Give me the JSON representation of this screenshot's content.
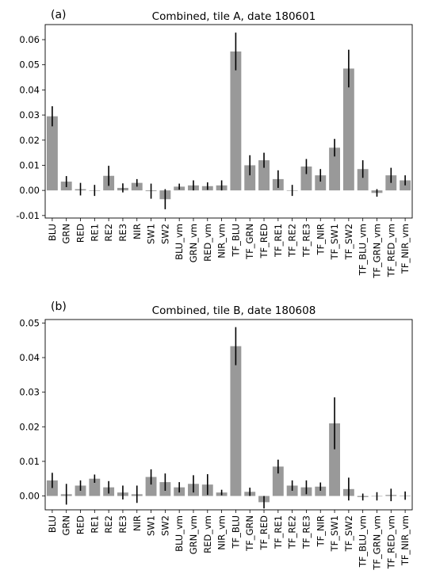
{
  "chart_data": [
    {
      "type": "bar",
      "panel_label": "(a)",
      "title": "Combined, tile A, date 180601",
      "xlabel": "",
      "ylabel": "",
      "ylim": [
        -0.011,
        0.066
      ],
      "yticks": [
        -0.01,
        0.0,
        0.01,
        0.02,
        0.03,
        0.04,
        0.05,
        0.06
      ],
      "ytick_labels": [
        "-0.01",
        "0.00",
        "0.01",
        "0.02",
        "0.03",
        "0.04",
        "0.05",
        "0.06"
      ],
      "grid": false,
      "bar_color": "#999999",
      "error_color": "#000000",
      "categories": [
        "BLU",
        "GRN",
        "RED",
        "RE1",
        "RE2",
        "RE3",
        "NIR",
        "SW1",
        "SW2",
        "BLU_vm",
        "GRN_vm",
        "RED_vm",
        "NIR_vm",
        "TF_BLU",
        "TF_GRN",
        "TF_RED",
        "TF_RE1",
        "TF_RE2",
        "TF_RE3",
        "TF_NIR",
        "TF_SW1",
        "TF_SW2",
        "TF_BLU_vm",
        "TF_GRN_vm",
        "TF_RED_vm",
        "TF_NIR_vm"
      ],
      "values": [
        0.0295,
        0.0035,
        0.0005,
        0.0,
        0.0058,
        0.001,
        0.003,
        -0.0003,
        -0.0035,
        0.0015,
        0.002,
        0.0017,
        0.002,
        0.0553,
        0.01,
        0.012,
        0.0045,
        0.0,
        0.0095,
        0.006,
        0.017,
        0.0485,
        0.0085,
        -0.001,
        0.006,
        0.004
      ],
      "errors": [
        0.004,
        0.0022,
        0.0025,
        0.0022,
        0.004,
        0.0018,
        0.0015,
        0.003,
        0.004,
        0.0012,
        0.002,
        0.0015,
        0.002,
        0.0075,
        0.004,
        0.003,
        0.0035,
        0.0022,
        0.003,
        0.0025,
        0.0035,
        0.0075,
        0.0035,
        0.0015,
        0.003,
        0.002
      ]
    },
    {
      "type": "bar",
      "panel_label": "(b)",
      "title": "Combined, tile B, date 180608",
      "xlabel": "",
      "ylabel": "",
      "ylim": [
        -0.004,
        0.051
      ],
      "yticks": [
        0.0,
        0.01,
        0.02,
        0.03,
        0.04,
        0.05
      ],
      "ytick_labels": [
        "0.00",
        "0.01",
        "0.02",
        "0.03",
        "0.04",
        "0.05"
      ],
      "grid": false,
      "bar_color": "#999999",
      "error_color": "#000000",
      "categories": [
        "BLU",
        "GRN",
        "RED",
        "RE1",
        "RE2",
        "RE3",
        "NIR",
        "SW1",
        "SW2",
        "BLU_vm",
        "GRN_vm",
        "RED_vm",
        "NIR_vm",
        "TF_BLU",
        "TF_GRN",
        "TF_RED",
        "TF_RE1",
        "TF_RE2",
        "TF_RE3",
        "TF_NIR",
        "TF_SW1",
        "TF_SW2",
        "TF_BLU_vm",
        "TF_GRN_vm",
        "TF_RED_vm",
        "TF_NIR_vm"
      ],
      "values": [
        0.0045,
        0.0005,
        0.003,
        0.005,
        0.0025,
        0.001,
        0.0005,
        0.0055,
        0.004,
        0.0025,
        0.0035,
        0.0033,
        0.001,
        0.0433,
        0.0012,
        -0.0018,
        0.0085,
        0.003,
        0.0025,
        0.0027,
        0.021,
        0.002,
        -0.0003,
        -0.0001,
        0.0003,
        0.0001
      ],
      "errors": [
        0.0022,
        0.003,
        0.0015,
        0.0012,
        0.0018,
        0.002,
        0.0025,
        0.0022,
        0.0025,
        0.0015,
        0.0025,
        0.003,
        0.0008,
        0.0055,
        0.0012,
        0.0018,
        0.002,
        0.0015,
        0.002,
        0.0012,
        0.0075,
        0.0033,
        0.001,
        0.0012,
        0.0018,
        0.0012
      ]
    }
  ]
}
